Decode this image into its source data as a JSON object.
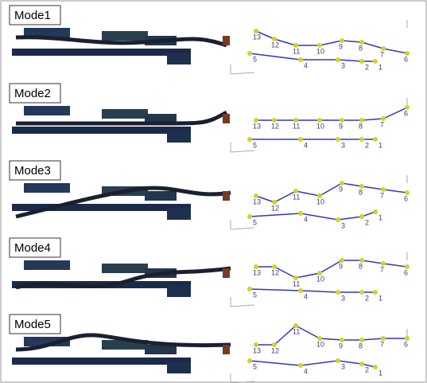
{
  "panels": [
    {
      "title": "Mode1",
      "upper_nodes": [
        "13",
        "12",
        "11",
        "10",
        "9",
        "8",
        "7",
        "6"
      ],
      "lower_nodes": [
        "5",
        "4",
        "3",
        "2",
        "1"
      ]
    },
    {
      "title": "Mode2",
      "upper_nodes": [
        "13",
        "12",
        "11",
        "10",
        "9",
        "8",
        "7",
        "6"
      ],
      "lower_nodes": [
        "5",
        "4",
        "3",
        "2",
        "1"
      ]
    },
    {
      "title": "Mode3",
      "upper_nodes": [
        "13",
        "12",
        "11",
        "10",
        "9",
        "8",
        "7",
        "6"
      ],
      "lower_nodes": [
        "5",
        "4",
        "3",
        "2",
        "1"
      ]
    },
    {
      "title": "Mode4",
      "upper_nodes": [
        "13",
        "12",
        "11",
        "10",
        "9",
        "8",
        "7",
        "6"
      ],
      "lower_nodes": [
        "5",
        "4",
        "3",
        "2",
        "1"
      ]
    },
    {
      "title": "Mode5",
      "upper_nodes": [
        "13",
        "12",
        "11",
        "10",
        "9",
        "8",
        "7",
        "6"
      ],
      "lower_nodes": [
        "5",
        "4",
        "3",
        "2",
        "1"
      ]
    }
  ]
}
